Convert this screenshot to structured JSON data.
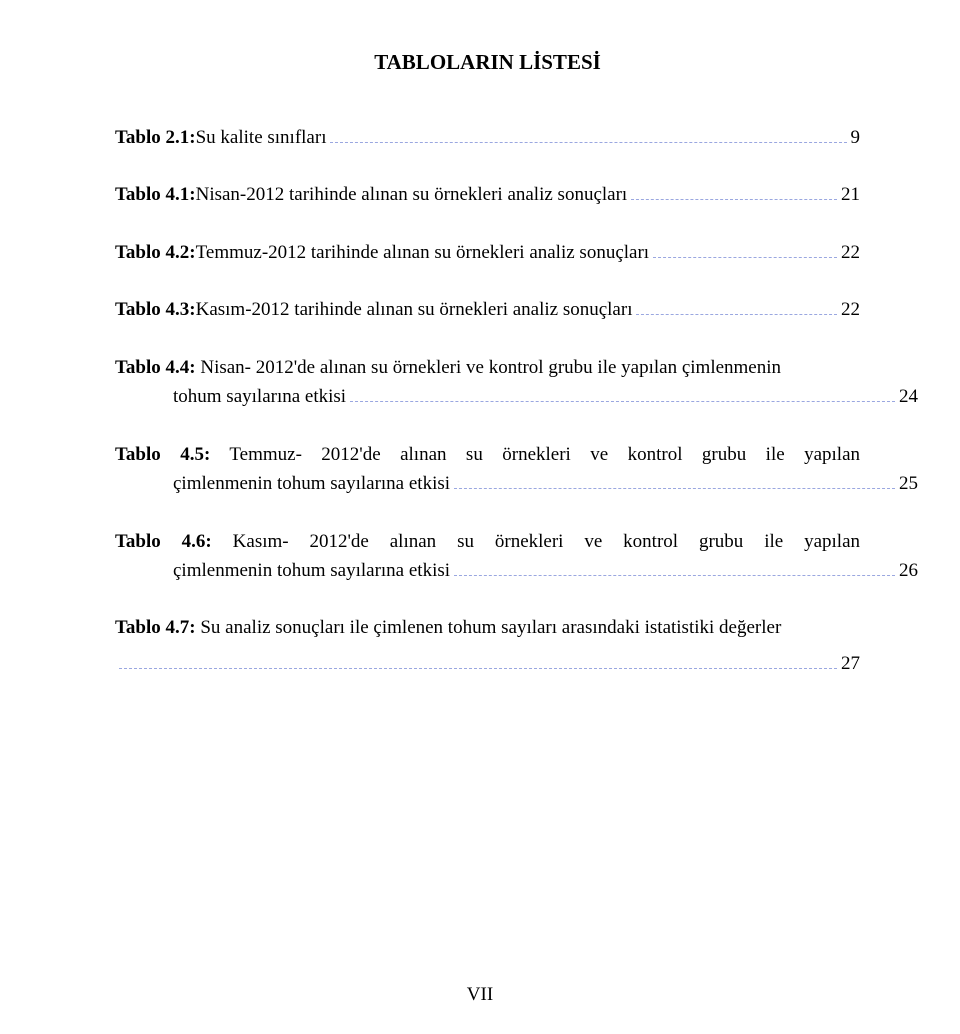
{
  "title": "TABLOLARIN LİSTESİ",
  "leader_color": "#9aa7e0",
  "text_color": "#000000",
  "background_color": "#ffffff",
  "font_family": "Times New Roman",
  "title_fontsize": 21,
  "body_fontsize": 19,
  "entries": [
    {
      "label": "Tablo 2.1:",
      "desc": " Su kalite sınıfları",
      "page": "9"
    },
    {
      "label": "Tablo 4.1:",
      "desc": " Nisan-2012 tarihinde alınan su örnekleri analiz sonuçları",
      "page": "21"
    },
    {
      "label": "Tablo 4.2:",
      "desc": " Temmuz-2012 tarihinde alınan su örnekleri analiz sonuçları",
      "page": "22"
    },
    {
      "label": "Tablo 4.3:",
      "desc": " Kasım-2012 tarihinde alınan su örnekleri analiz sonuçları",
      "page": "22"
    },
    {
      "label": "Tablo 4.4:",
      "line1": " Nisan- 2012'de alınan su örnekleri ve kontrol grubu ile yapılan çimlenmenin",
      "line2": "tohum sayılarına etkisi",
      "page": "24"
    },
    {
      "label": "Tablo 4.5:",
      "justified": true,
      "line1": " Temmuz- 2012'de alınan su örnekleri ve kontrol grubu ile yapılan",
      "line2": "çimlenmenin tohum sayılarına etkisi",
      "page": "25"
    },
    {
      "label": "Tablo 4.6:",
      "justified": true,
      "line1": " Kasım- 2012'de alınan su örnekleri ve kontrol grubu ile yapılan",
      "line2": "çimlenmenin tohum sayılarına etkisi",
      "page": "26"
    },
    {
      "label": "Tablo 4.7:",
      "desc": " Su analiz sonuçları ile çimlenen tohum sayıları arasındaki istatistiki değerler",
      "standalone_leader": true,
      "page": "27"
    }
  ],
  "footer": "VII"
}
